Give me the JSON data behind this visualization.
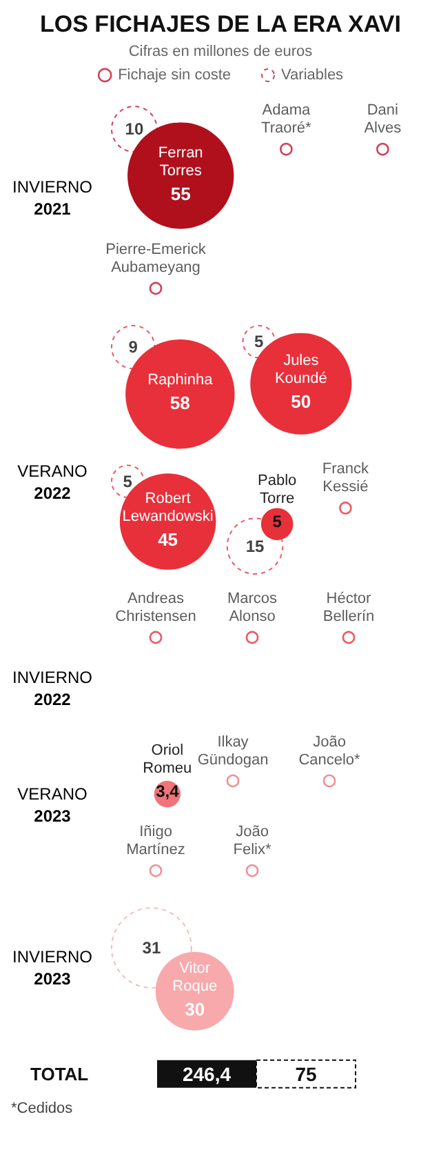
{
  "chart_data": [
    {
      "type": "other",
      "title": "LOS FICHAJES DE LA ERA XAVI",
      "subtitle": "Cifras en millones de euros",
      "legend": "top",
      "ylabel": "INVIERNO 2021",
      "categories": [
        "Ferran Torres",
        "Adama Traoré*",
        "Dani Alves",
        "Pierre-Emerick Aubameyang"
      ],
      "series": [
        {
          "color": "#b0101c",
          "values": [
            55,
            null,
            null,
            null
          ],
          "value_labels": [
            "55",
            null,
            null,
            null
          ]
        },
        {
          "name": "Fichaje sin coste",
          "color": "#c8102e",
          "marker": "circle",
          "values": [
            null,
            null,
            null,
            null
          ]
        },
        {
          "name": "Variables",
          "color": "#c8102e",
          "line_style": "dashed",
          "values": [
            10,
            null,
            null,
            null
          ],
          "value_labels": [
            "10",
            null,
            null,
            null
          ]
        }
      ]
    },
    {
      "type": "other",
      "ylabel": "VERANO 2022",
      "categories": [
        "Raphinha",
        "Jules Koundé",
        "Robert Lewandowski",
        "Pablo Torre",
        "Franck Kessié",
        "Andreas Christensen",
        "Marcos Alonso",
        "Héctor Bellerín"
      ],
      "series": [
        {
          "color": "#e8303a",
          "values": [
            58,
            50,
            45,
            5,
            null,
            null,
            null,
            null
          ],
          "value_labels": [
            "58",
            "50",
            "45",
            "5",
            null,
            null,
            null,
            null
          ]
        },
        {
          "color": "#e8303a",
          "marker": "circle",
          "values": [
            null,
            null,
            null,
            null,
            null,
            null,
            null,
            null
          ]
        },
        {
          "color": "#e8303a",
          "line_style": "dashed",
          "values": [
            9,
            5,
            5,
            15,
            null,
            null,
            null,
            null
          ],
          "value_labels": [
            "9",
            "5",
            "5",
            "15",
            null,
            null,
            null,
            null
          ]
        }
      ]
    },
    {
      "type": "other",
      "ylabel": "INVIERNO 2022"
    },
    {
      "type": "other",
      "ylabel": "VERANO 2023",
      "categories": [
        "Oriol Romeu",
        "Ilkay Gündogan",
        "João Cancelo*",
        "Iñigo Martínez",
        "João Felix*"
      ],
      "series": [
        {
          "color": "#f07479",
          "values": [
            3.4,
            null,
            null,
            null,
            null
          ],
          "value_labels": [
            "3,4",
            null,
            null,
            null,
            null
          ]
        },
        {
          "color": "#f07479",
          "marker": "circle",
          "values": [
            null,
            null,
            null,
            null,
            null
          ]
        }
      ]
    },
    {
      "type": "other",
      "ylabel": "INVIERNO 2023",
      "categories": [
        "Vitor Roque"
      ],
      "series": [
        {
          "color": "#f7a9ac",
          "values": [
            30
          ],
          "value_labels": [
            "30"
          ]
        },
        {
          "color": "#f7a9ac",
          "line_style": "dashed",
          "values": [
            31
          ],
          "value_labels": [
            "31"
          ]
        }
      ],
      "totals": [
        "246,4",
        "75"
      ],
      "annotations": [
        "TOTAL",
        "*Cedidos"
      ]
    }
  ]
}
